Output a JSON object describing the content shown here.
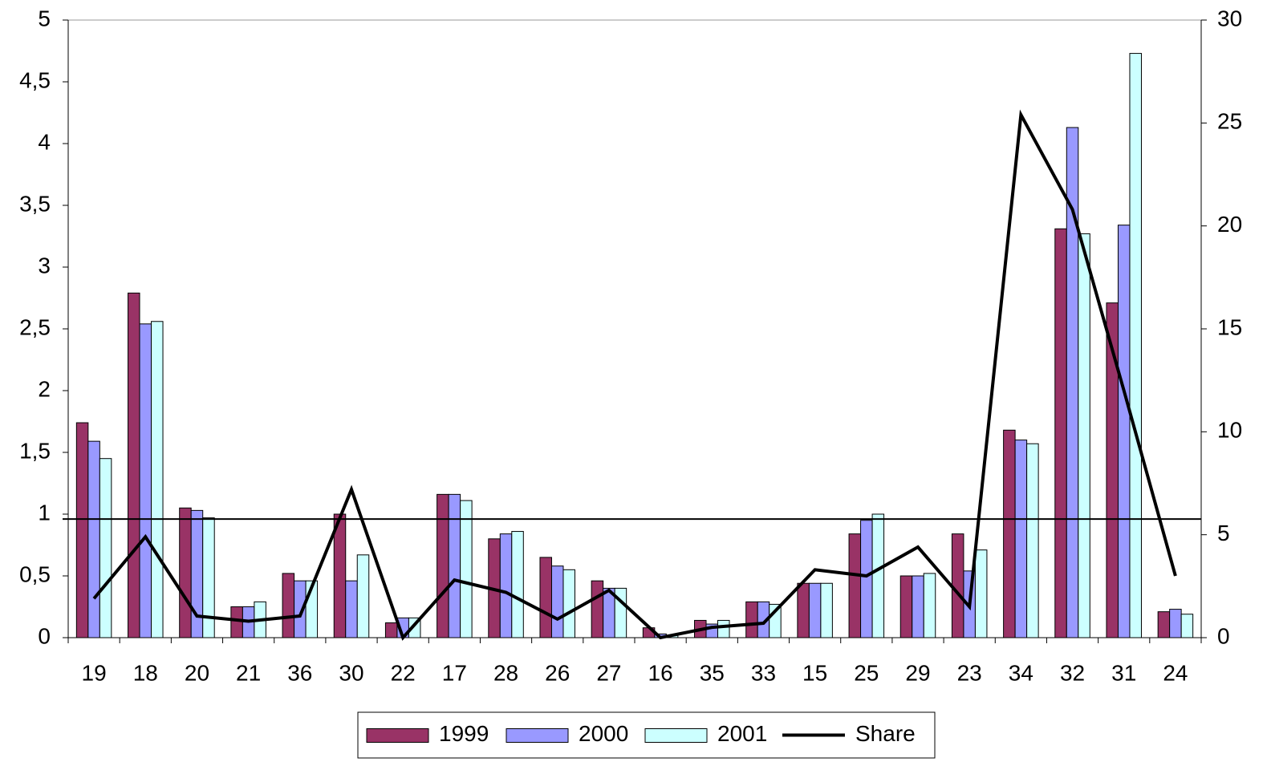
{
  "chart_data": {
    "type": "bar",
    "categories": [
      "19",
      "18",
      "20",
      "21",
      "36",
      "30",
      "22",
      "17",
      "28",
      "26",
      "27",
      "16",
      "35",
      "33",
      "15",
      "25",
      "29",
      "23",
      "34",
      "32",
      "31",
      "24"
    ],
    "series": [
      {
        "name": "1999",
        "color": "#993366",
        "values": [
          1.74,
          2.79,
          1.05,
          0.25,
          0.52,
          1.0,
          0.12,
          1.16,
          0.8,
          0.65,
          0.46,
          0.08,
          0.14,
          0.29,
          0.44,
          0.84,
          0.5,
          0.84,
          1.68,
          3.31,
          2.71,
          0.21
        ]
      },
      {
        "name": "2000",
        "color": "#9999ff",
        "values": [
          1.59,
          2.54,
          1.03,
          0.25,
          0.46,
          0.46,
          0.16,
          1.16,
          0.84,
          0.58,
          0.4,
          0.03,
          0.11,
          0.29,
          0.44,
          0.95,
          0.5,
          0.54,
          1.6,
          4.13,
          3.34,
          0.23
        ]
      },
      {
        "name": "2001",
        "color": "#ccffff",
        "values": [
          1.45,
          2.56,
          0.97,
          0.29,
          0.46,
          0.67,
          0.16,
          1.11,
          0.86,
          0.55,
          0.4,
          0.02,
          0.14,
          0.27,
          0.44,
          1.0,
          0.52,
          0.71,
          1.57,
          3.27,
          4.73,
          0.19
        ]
      },
      {
        "name": "Share",
        "type": "line",
        "axis": "y2",
        "color": "#000000",
        "values": [
          1.9,
          4.9,
          1.05,
          0.8,
          1.05,
          7.2,
          0,
          2.8,
          2.2,
          0.9,
          2.3,
          0,
          0.5,
          0.7,
          3.3,
          3.0,
          4.4,
          1.5,
          25.4,
          20.8,
          12.0,
          3.0
        ]
      }
    ],
    "ylim": [
      0,
      5
    ],
    "yticks": [
      0,
      {
        "value": 0.5,
        "label": "0,5"
      },
      1,
      {
        "value": 1.5,
        "label": "1,5"
      },
      2,
      {
        "value": 2.5,
        "label": "2,5"
      },
      3,
      {
        "value": 3.5,
        "label": "3,5"
      },
      4,
      {
        "value": 4.5,
        "label": "4,5"
      },
      5
    ],
    "y2lim": [
      0,
      30
    ],
    "y2ticks": [
      0,
      5,
      10,
      15,
      20,
      25,
      30
    ],
    "reference_line": 0.96,
    "legend": "bottom"
  }
}
